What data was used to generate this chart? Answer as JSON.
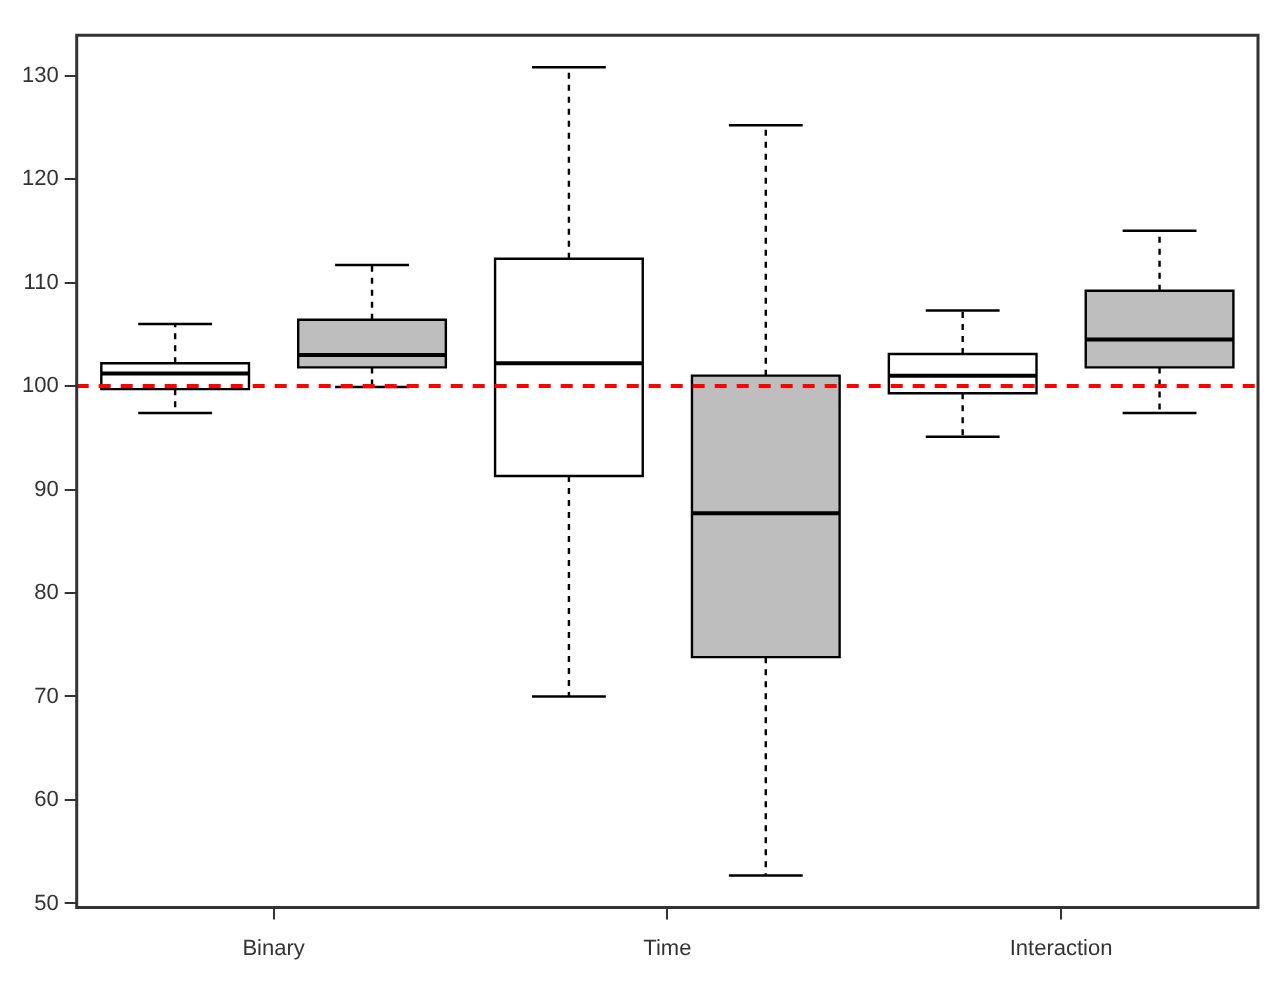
{
  "chart_data": {
    "type": "box",
    "categories": [
      "Binary",
      "Time",
      "Interaction"
    ],
    "series": [
      {
        "color": "#ffffff",
        "boxes": [
          {
            "low": 97.4,
            "q1": 99.7,
            "median": 101.2,
            "q3": 102.2,
            "high": 106
          },
          {
            "low": 70,
            "q1": 91.3,
            "median": 102.2,
            "q3": 112.3,
            "high": 130.8
          },
          {
            "low": 95.1,
            "q1": 99.3,
            "median": 101,
            "q3": 103.1,
            "high": 107.3
          }
        ]
      },
      {
        "color": "#bebebe",
        "boxes": [
          {
            "low": 99.9,
            "q1": 101.8,
            "median": 103,
            "q3": 106.4,
            "high": 111.7
          },
          {
            "low": 52.7,
            "q1": 73.8,
            "median": 87.7,
            "q3": 101,
            "high": 125.2
          },
          {
            "low": 97.4,
            "q1": 101.8,
            "median": 104.5,
            "q3": 109.2,
            "high": 115
          }
        ]
      }
    ],
    "ylim": [
      49.6,
      133.9
    ],
    "yticks": [
      50,
      60,
      70,
      80,
      90,
      100,
      110,
      120,
      130
    ],
    "ref_lines": [
      {
        "axis": "y",
        "value": 100,
        "color": "#ff0000",
        "line_style": "dashed"
      }
    ]
  }
}
